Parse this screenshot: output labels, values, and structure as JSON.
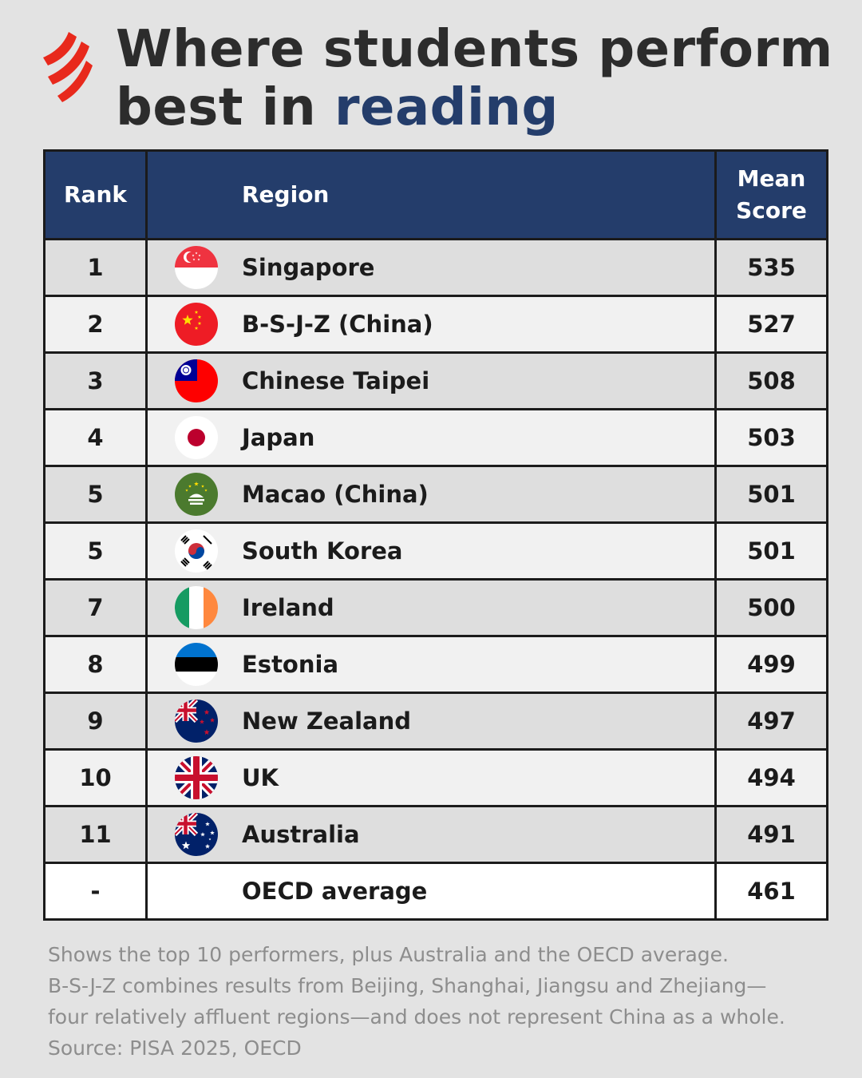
{
  "title": {
    "line1": "Where students perform",
    "line2_prefix": "best in",
    "line2_accent": "reading",
    "accent_color": "#243d6b"
  },
  "logo": {
    "icon": "sbs-logo-icon",
    "color": "#e8291c"
  },
  "chart_data": {
    "type": "table",
    "columns": [
      "Rank",
      "Region",
      "Mean",
      "Score"
    ],
    "rows": [
      {
        "rank": "1",
        "region": "Singapore",
        "score": "535",
        "flag": "singapore-flag-icon"
      },
      {
        "rank": "2",
        "region": "B-S-J-Z (China)",
        "score": "527",
        "flag": "china-flag-icon"
      },
      {
        "rank": "3",
        "region": "Chinese Taipei",
        "score": "508",
        "flag": "taiwan-flag-icon"
      },
      {
        "rank": "4",
        "region": "Japan",
        "score": "503",
        "flag": "japan-flag-icon"
      },
      {
        "rank": "5",
        "region": "Macao (China)",
        "score": "501",
        "flag": "macao-flag-icon"
      },
      {
        "rank": "5",
        "region": "South Korea",
        "score": "501",
        "flag": "south-korea-flag-icon"
      },
      {
        "rank": "7",
        "region": "Ireland",
        "score": "500",
        "flag": "ireland-flag-icon"
      },
      {
        "rank": "8",
        "region": "Estonia",
        "score": "499",
        "flag": "estonia-flag-icon"
      },
      {
        "rank": "9",
        "region": "New Zealand",
        "score": "497",
        "flag": "new-zealand-flag-icon"
      },
      {
        "rank": "10",
        "region": "UK",
        "score": "494",
        "flag": "uk-flag-icon"
      },
      {
        "rank": "11",
        "region": "Australia",
        "score": "491",
        "flag": "australia-flag-icon"
      },
      {
        "rank": "-",
        "region": "OECD average",
        "score": "461",
        "flag": ""
      }
    ],
    "header_color": "#243d6b"
  },
  "footnote": {
    "line1": "Shows the top 10 performers, plus Australia and the OECD average.",
    "line2": "B-S-J-Z combines results from Beijing, Shanghai, Jiangsu and Zhejiang—",
    "line3": "four relatively affluent regions—and does not represent China as a whole.",
    "line4": "Source: PISA 2025, OECD"
  }
}
